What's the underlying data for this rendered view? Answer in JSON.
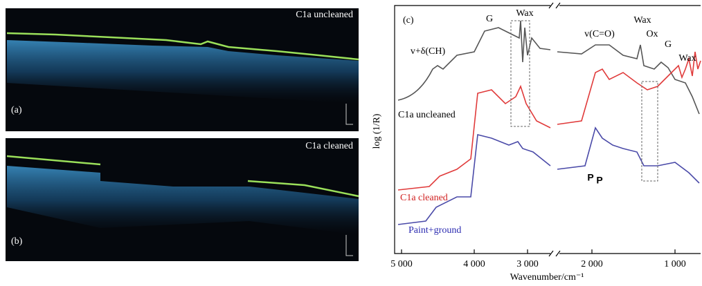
{
  "panel_a": {
    "letter": "(a)",
    "caption": "C1a uncleaned"
  },
  "panel_b": {
    "letter": "(b)",
    "caption": "C1a cleaned"
  },
  "panel_c": {
    "letter": "(c)",
    "y_axis_label": "log (1/R)",
    "x_axis_label": "Wavenumber/cm⁻¹",
    "x_tick_labels": [
      "5 000",
      "4 000",
      "3 000",
      "2 000",
      "1 000"
    ],
    "annotations": [
      "G",
      "Wax",
      "v+δ(CH)",
      "v(C=O)",
      "Wax",
      "Ox",
      "G",
      "Wax",
      "P",
      "P"
    ],
    "curve_labels": [
      "C1a uncleaned",
      "C1a cleaned",
      "Paint+ground"
    ]
  }
}
